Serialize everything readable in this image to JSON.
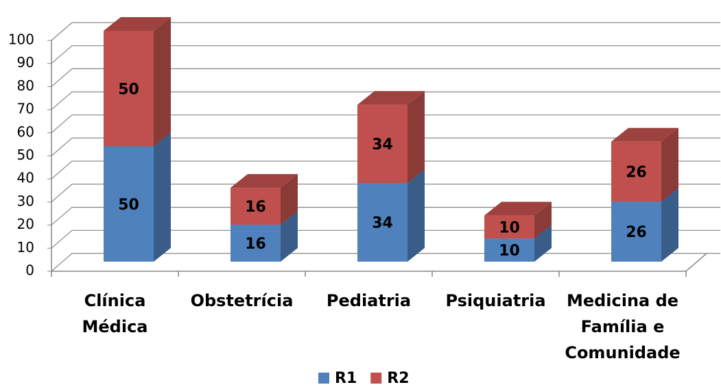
{
  "chart_data": {
    "type": "bar3d_stacked",
    "categories": [
      "Clínica Médica",
      "Obstetrícia",
      "Pediatria",
      "Psiquiatria",
      "Medicina de Família e Comunidade"
    ],
    "series": [
      {
        "name": "R1",
        "color": "#4f81bd",
        "values": [
          50,
          16,
          34,
          10,
          26
        ]
      },
      {
        "name": "R2",
        "color": "#c0504d",
        "values": [
          50,
          16,
          34,
          10,
          26
        ]
      }
    ],
    "ylim": [
      0,
      100
    ],
    "yticks": [
      0,
      10,
      20,
      30,
      40,
      50,
      60,
      70,
      80,
      90,
      100
    ],
    "grid": true,
    "legend": "bottom"
  }
}
